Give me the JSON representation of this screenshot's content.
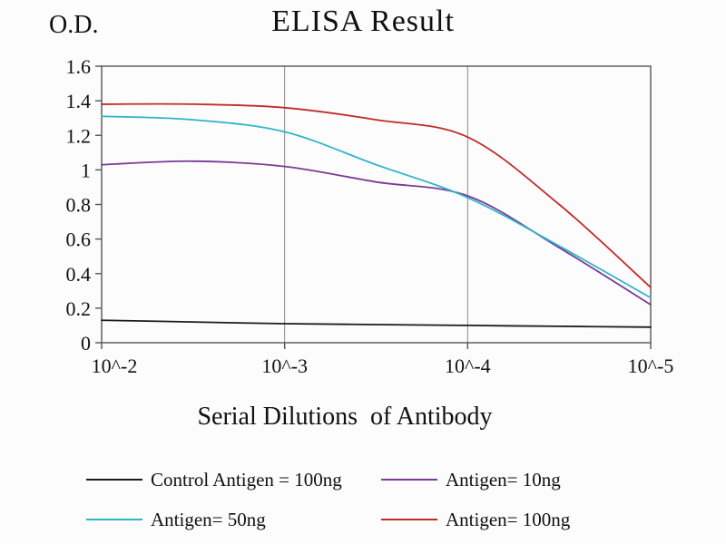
{
  "chart_data": {
    "type": "line",
    "title": "ELISA Result",
    "ylabel": "O.D.",
    "xlabel": "Serial Dilutions  of Antibody",
    "x_tick_labels": [
      "10^-2",
      "10^-3",
      "10^-4",
      "10^-5"
    ],
    "y_tick_labels": [
      "0",
      "0.2",
      "0.4",
      "0.6",
      "0.8",
      "1",
      "1.2",
      "1.4",
      "1.6"
    ],
    "ylim": [
      0,
      1.6
    ],
    "x_axis_scale": "serial dilutions 10^-2 to 10^-5",
    "grid": "vertical-only",
    "legend_position": "bottom-two-columns",
    "x": [
      0,
      0.5,
      1,
      1.5,
      2,
      2.5,
      3
    ],
    "series": [
      {
        "name": "Control Antigen = 100ng",
        "color": "#1c1c1c",
        "values": [
          0.13,
          0.12,
          0.11,
          0.105,
          0.1,
          0.095,
          0.09
        ]
      },
      {
        "name": "Antigen= 10ng",
        "color": "#7a3b96",
        "values": [
          1.03,
          1.05,
          1.02,
          0.93,
          0.85,
          0.55,
          0.22
        ]
      },
      {
        "name": "Antigen= 50ng",
        "color": "#2fb4c8",
        "values": [
          1.31,
          1.29,
          1.22,
          1.03,
          0.84,
          0.56,
          0.26
        ]
      },
      {
        "name": "Antigen= 100ng",
        "color": "#c22b2b",
        "values": [
          1.38,
          1.38,
          1.36,
          1.29,
          1.19,
          0.8,
          0.32
        ]
      }
    ],
    "colors": {
      "plot_border": "#555555",
      "gridline": "#8a8a8a",
      "tick_text": "#111111"
    }
  }
}
